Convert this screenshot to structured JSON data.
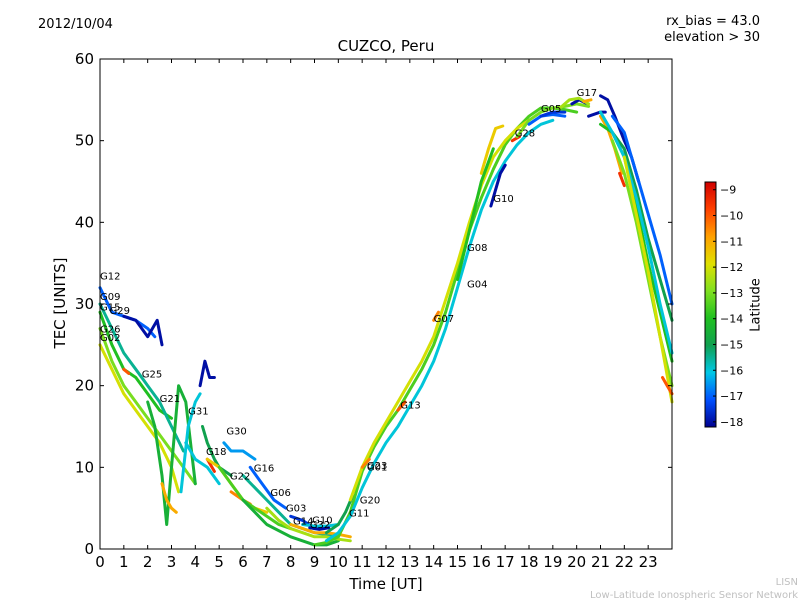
{
  "header": {
    "date": "2012/10/04",
    "rx_bias": "rx_bias = 43.0",
    "elevation": "elevation > 30"
  },
  "credit": {
    "line1": "LISN",
    "line2": "Low-Latitude Ionospheric Sensor Network"
  },
  "colorbar": {
    "label": "Latitude",
    "ticks": [
      -9,
      -10,
      -11,
      -12,
      -13,
      -14,
      -15,
      -16,
      -17,
      -18
    ],
    "range": [
      -18.2,
      -8.7
    ],
    "colors": [
      "#00008f",
      "#0050ff",
      "#00c8e6",
      "#10a050",
      "#20c020",
      "#80e020",
      "#e0e000",
      "#ffa000",
      "#ff4000",
      "#d00000"
    ]
  },
  "chart_data": {
    "type": "scatter",
    "title": "CUZCO, Peru",
    "xlabel": "Time [UT]",
    "ylabel": "TEC [UNITS]",
    "xlim": [
      0,
      24
    ],
    "ylim": [
      0,
      60
    ],
    "xticks": [
      0,
      1,
      2,
      3,
      4,
      5,
      6,
      7,
      8,
      9,
      10,
      11,
      12,
      13,
      14,
      15,
      16,
      17,
      18,
      19,
      20,
      21,
      22,
      23
    ],
    "yticks": [
      0,
      10,
      20,
      30,
      40,
      50,
      60
    ],
    "grid": false,
    "prn_labels": [
      {
        "text": "G12",
        "x": 0.0,
        "y": 33.0
      },
      {
        "text": "G09",
        "x": 0.0,
        "y": 30.5
      },
      {
        "text": "G15",
        "x": 0.0,
        "y": 29.2
      },
      {
        "text": "G29",
        "x": 0.4,
        "y": 28.8
      },
      {
        "text": "G26",
        "x": 0.0,
        "y": 26.5
      },
      {
        "text": "G02",
        "x": 0.0,
        "y": 25.5
      },
      {
        "text": "G25",
        "x": 1.75,
        "y": 21.0
      },
      {
        "text": "G21",
        "x": 2.5,
        "y": 18.0
      },
      {
        "text": "G31",
        "x": 3.7,
        "y": 16.5
      },
      {
        "text": "G30",
        "x": 5.3,
        "y": 14.0
      },
      {
        "text": "G18",
        "x": 4.45,
        "y": 11.5
      },
      {
        "text": "G16",
        "x": 6.45,
        "y": 9.5
      },
      {
        "text": "G22",
        "x": 5.45,
        "y": 8.5
      },
      {
        "text": "G06",
        "x": 7.15,
        "y": 6.5
      },
      {
        "text": "G03",
        "x": 7.8,
        "y": 4.6
      },
      {
        "text": "G14",
        "x": 8.1,
        "y": 3.0
      },
      {
        "text": "G10",
        "x": 8.9,
        "y": 3.1
      },
      {
        "text": "G32",
        "x": 8.8,
        "y": 2.6
      },
      {
        "text": "G20",
        "x": 10.9,
        "y": 5.6
      },
      {
        "text": "G11",
        "x": 10.45,
        "y": 4.0
      },
      {
        "text": "G23",
        "x": 11.2,
        "y": 9.8
      },
      {
        "text": "G01",
        "x": 11.2,
        "y": 9.6
      },
      {
        "text": "G13",
        "x": 12.6,
        "y": 17.2
      },
      {
        "text": "G07",
        "x": 14.0,
        "y": 27.8
      },
      {
        "text": "G04",
        "x": 15.4,
        "y": 32.0
      },
      {
        "text": "G08",
        "x": 15.4,
        "y": 36.5
      },
      {
        "text": "G10",
        "x": 16.5,
        "y": 42.5
      },
      {
        "text": "G28",
        "x": 17.4,
        "y": 50.5
      },
      {
        "text": "G05",
        "x": 18.5,
        "y": 53.5
      },
      {
        "text": "G17",
        "x": 20.0,
        "y": 55.5
      }
    ],
    "series": [
      {
        "lat": -12.0,
        "x": [
          0,
          0.5,
          1,
          1.5,
          2,
          2.5,
          3,
          3.3
        ],
        "y": [
          25,
          22,
          19,
          17,
          15,
          13,
          10,
          7
        ]
      },
      {
        "lat": -13.0,
        "x": [
          0,
          0.5,
          1,
          1.5,
          2,
          2.5,
          3,
          3.5,
          4
        ],
        "y": [
          27,
          23,
          20,
          18,
          16,
          14,
          12,
          10,
          8
        ]
      },
      {
        "lat": -14.0,
        "x": [
          0,
          0.5,
          1,
          1.5,
          2,
          2.5,
          3
        ],
        "y": [
          29,
          25,
          22,
          21,
          19,
          17,
          16
        ]
      },
      {
        "lat": -15.5,
        "x": [
          0,
          0.5,
          1,
          1.5,
          2,
          2.5,
          3,
          3.5
        ],
        "y": [
          30,
          27,
          24,
          22,
          20,
          18,
          15,
          12
        ]
      },
      {
        "lat": -17.0,
        "x": [
          0,
          0.5,
          1,
          1.5,
          2,
          2.3
        ],
        "y": [
          32,
          29,
          28.5,
          28,
          27,
          26
        ]
      },
      {
        "lat": -18.0,
        "x": [
          1,
          1.5,
          2,
          2.4,
          2.6
        ],
        "y": [
          28.5,
          28,
          26,
          28,
          25
        ]
      },
      {
        "lat": -10.0,
        "x": [
          1,
          1.2
        ],
        "y": [
          22,
          21.5
        ]
      },
      {
        "lat": -14.5,
        "x": [
          2,
          2.3,
          2.6,
          2.8,
          3,
          3.3,
          3.6,
          4
        ],
        "y": [
          18,
          15,
          9,
          3,
          10,
          20,
          18,
          8
        ]
      },
      {
        "lat": -11.0,
        "x": [
          2.6,
          2.8,
          3,
          3.2
        ],
        "y": [
          8,
          6,
          5,
          4.5
        ]
      },
      {
        "lat": -16.0,
        "x": [
          3.4,
          3.7,
          4.0,
          4.2
        ],
        "y": [
          7,
          15,
          18,
          19
        ]
      },
      {
        "lat": -18.0,
        "x": [
          4.2,
          4.4,
          4.6,
          4.8
        ],
        "y": [
          20,
          23,
          21,
          21
        ]
      },
      {
        "lat": -16.0,
        "x": [
          3.6,
          4.0,
          4.5,
          5.0
        ],
        "y": [
          13,
          11,
          10,
          8
        ]
      },
      {
        "lat": -15.0,
        "x": [
          4.3,
          4.5,
          4.8,
          5,
          5.5
        ],
        "y": [
          15,
          13,
          11,
          10,
          9
        ]
      },
      {
        "lat": -9.5,
        "x": [
          4.5,
          4.8
        ],
        "y": [
          11,
          9.5
        ]
      },
      {
        "lat": -16.5,
        "x": [
          5.2,
          5.5,
          6,
          6.5
        ],
        "y": [
          13,
          12,
          12,
          11
        ]
      },
      {
        "lat": -17.0,
        "x": [
          6.3,
          6.8,
          7.3,
          7.8
        ],
        "y": [
          10,
          8,
          6,
          5
        ]
      },
      {
        "lat": -11.5,
        "x": [
          4.5,
          5,
          5.5,
          6,
          6.5,
          7
        ],
        "y": [
          11,
          10,
          8,
          6,
          5,
          4.5
        ]
      },
      {
        "lat": -10.5,
        "x": [
          5.5,
          6,
          6.3
        ],
        "y": [
          7,
          6,
          5.5
        ]
      },
      {
        "lat": -13.5,
        "x": [
          5,
          5.5,
          6,
          6.5,
          7,
          7.5,
          8
        ],
        "y": [
          10,
          8,
          6,
          5,
          4,
          3,
          2.5
        ]
      },
      {
        "lat": -15.5,
        "x": [
          6,
          7,
          8,
          9,
          10
        ],
        "y": [
          9,
          6,
          3,
          2,
          1.5
        ]
      },
      {
        "lat": -14.5,
        "x": [
          6,
          7,
          8,
          9,
          9.5,
          10
        ],
        "y": [
          6,
          3,
          1.5,
          0.5,
          0.5,
          1
        ]
      },
      {
        "lat": -12.5,
        "x": [
          7,
          7.5,
          8,
          8.5,
          9,
          9.5,
          10,
          10.5
        ],
        "y": [
          5,
          3.5,
          2.5,
          2,
          1.5,
          1.5,
          1.2,
          1
        ]
      },
      {
        "lat": -11.0,
        "x": [
          8,
          8.5,
          9,
          9.5,
          10,
          10.5
        ],
        "y": [
          3,
          2.5,
          2,
          2,
          1.8,
          1.5
        ]
      },
      {
        "lat": -17.5,
        "x": [
          8,
          8.5,
          9,
          9.3
        ],
        "y": [
          4,
          3.5,
          2.5,
          2.5
        ]
      },
      {
        "lat": -16.0,
        "x": [
          8.5,
          9,
          9.5,
          10
        ],
        "y": [
          3,
          2.8,
          2.8,
          3
        ]
      },
      {
        "lat": -18.0,
        "x": [
          8.8,
          9.2,
          9.6
        ],
        "y": [
          2.6,
          2.4,
          2.6
        ]
      },
      {
        "lat": -15.0,
        "x": [
          9.5,
          10,
          10.3,
          10.6
        ],
        "y": [
          2,
          3,
          4.5,
          6.5
        ]
      },
      {
        "lat": -13.5,
        "x": [
          9,
          9.5,
          10,
          10.5,
          11,
          11.5,
          12,
          12.5,
          13,
          13.5,
          14,
          14.5,
          15,
          15.5,
          16,
          16.5,
          17,
          17.5,
          18,
          18.5,
          19,
          19.5,
          20
        ],
        "y": [
          0.5,
          0.8,
          1.5,
          4.5,
          9.5,
          12.5,
          15,
          17,
          19.5,
          22,
          25,
          29,
          34,
          39,
          43,
          46.5,
          49.5,
          51.5,
          53,
          54,
          54,
          53.8,
          53.5
        ]
      },
      {
        "lat": -16.0,
        "x": [
          9.5,
          10,
          10.5,
          11,
          11.5,
          12,
          12.5,
          13,
          13.5,
          14,
          14.5,
          15,
          15.5,
          16,
          16.5,
          17,
          17.5,
          18,
          18.5,
          19
        ],
        "y": [
          1,
          2,
          4,
          7.5,
          10.5,
          13,
          15,
          17.5,
          20,
          23,
          27,
          32,
          37,
          41.5,
          45,
          47.5,
          49.5,
          51,
          52,
          52.5
        ]
      },
      {
        "lat": -12.0,
        "x": [
          10.5,
          11,
          11.5,
          12,
          12.5,
          13,
          13.5,
          14,
          14.5,
          15,
          15.5,
          16,
          16.5,
          17,
          17.5,
          18
        ],
        "y": [
          6,
          10,
          13,
          15.5,
          18,
          20.5,
          23,
          26,
          30.5,
          35,
          40,
          44.5,
          48,
          50,
          51.5,
          52.5
        ]
      },
      {
        "lat": -10.5,
        "x": [
          11,
          11.3
        ],
        "y": [
          10,
          11
        ]
      },
      {
        "lat": -10.0,
        "x": [
          12.5,
          12.8
        ],
        "y": [
          17,
          18
        ]
      },
      {
        "lat": -10.5,
        "x": [
          14,
          14.2
        ],
        "y": [
          28,
          29
        ]
      },
      {
        "lat": -14.0,
        "x": [
          15,
          15.5,
          16,
          16.5
        ],
        "y": [
          33,
          39,
          45,
          49
        ]
      },
      {
        "lat": -11.5,
        "x": [
          16,
          16.3,
          16.6,
          16.9
        ],
        "y": [
          46,
          49,
          51.5,
          51.8
        ]
      },
      {
        "lat": -18.0,
        "x": [
          16.4,
          16.6,
          16.8,
          17
        ],
        "y": [
          42,
          44,
          46,
          47
        ]
      },
      {
        "lat": -9.5,
        "x": [
          17.3,
          17.6
        ],
        "y": [
          50,
          50.5
        ]
      },
      {
        "lat": -13.0,
        "x": [
          17.5,
          18,
          18.5,
          19,
          19.5,
          20,
          20.5
        ],
        "y": [
          50.5,
          52.5,
          53.5,
          54,
          54.2,
          54.5,
          54.2
        ]
      },
      {
        "lat": -17.0,
        "x": [
          18,
          18.5,
          19,
          19.5
        ],
        "y": [
          52,
          53,
          53.2,
          53
        ]
      },
      {
        "lat": -17.5,
        "x": [
          18.5,
          19,
          19.5
        ],
        "y": [
          53,
          53.5,
          53.5
        ]
      },
      {
        "lat": -18.0,
        "x": [
          19.8,
          20.1,
          20.4
        ],
        "y": [
          54.5,
          55,
          54.6
        ]
      },
      {
        "lat": -12.5,
        "x": [
          19.3,
          19.7,
          20.1,
          20.5
        ],
        "y": [
          54,
          55,
          55.2,
          54.5
        ]
      },
      {
        "lat": -11.0,
        "x": [
          20.3,
          20.6
        ],
        "y": [
          54.8,
          55
        ]
      },
      {
        "lat": -18.0,
        "x": [
          20.5,
          21,
          21.2
        ],
        "y": [
          53,
          53.5,
          53.5
        ]
      },
      {
        "lat": -11.0,
        "x": [
          21,
          21.3,
          21.6,
          21.9
        ],
        "y": [
          53,
          51.5,
          49,
          46
        ]
      },
      {
        "lat": -9.5,
        "x": [
          21.8,
          22
        ],
        "y": [
          46,
          44.5
        ]
      },
      {
        "lat": -18.0,
        "x": [
          21,
          21.3,
          21.6,
          22,
          22.3,
          22.6
        ],
        "y": [
          55.5,
          55,
          53,
          50,
          48,
          45
        ]
      },
      {
        "lat": -14.0,
        "x": [
          21,
          21.5,
          22,
          22.5,
          23,
          23.5,
          24
        ],
        "y": [
          52,
          51,
          48,
          42,
          35,
          29,
          23
        ]
      },
      {
        "lat": -15.0,
        "x": [
          21.5,
          22,
          22.5,
          23,
          23.5,
          24
        ],
        "y": [
          51,
          49,
          44,
          38,
          33,
          28
        ]
      },
      {
        "lat": -17.0,
        "x": [
          21.5,
          22,
          22.5,
          23,
          23.5,
          24
        ],
        "y": [
          53,
          51,
          46,
          41,
          36,
          30
        ]
      },
      {
        "lat": -16.0,
        "x": [
          21,
          21.5,
          22,
          22.5,
          23,
          23.5,
          24
        ],
        "y": [
          53.5,
          51,
          48,
          43,
          37,
          30,
          24
        ]
      },
      {
        "lat": -13.0,
        "x": [
          21.5,
          22,
          22.5,
          23,
          23.5,
          24
        ],
        "y": [
          50,
          46,
          40,
          33,
          26,
          20
        ]
      },
      {
        "lat": -12.0,
        "x": [
          22,
          22.5,
          23,
          23.5,
          24
        ],
        "y": [
          48,
          41,
          34,
          26,
          18
        ]
      },
      {
        "lat": -10.0,
        "x": [
          23.6,
          23.8,
          24
        ],
        "y": [
          21,
          20,
          19
        ]
      }
    ]
  }
}
